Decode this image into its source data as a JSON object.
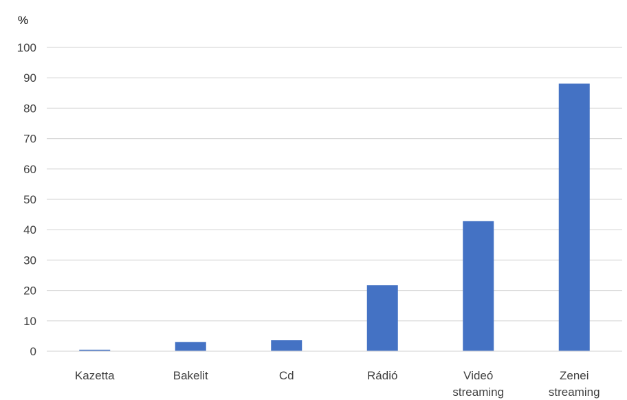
{
  "chart_data": {
    "type": "bar",
    "ylabel": "%",
    "categories": [
      "Kazetta",
      "Bakelit",
      "Cd",
      "Rádió",
      "Videó streaming",
      "Zenei streaming"
    ],
    "category_lines": [
      [
        "Kazetta"
      ],
      [
        "Bakelit"
      ],
      [
        "Cd"
      ],
      [
        "Rádió"
      ],
      [
        "Videó",
        "streaming"
      ],
      [
        "Zenei",
        "streaming"
      ]
    ],
    "values": [
      0.5,
      3,
      3.6,
      21.7,
      42.8,
      88.1
    ],
    "ylim": [
      0,
      100
    ],
    "yticks": [
      0,
      10,
      20,
      30,
      40,
      50,
      60,
      70,
      80,
      90,
      100
    ],
    "grid": true,
    "legend": "none",
    "bar_color": "#4472c4"
  }
}
